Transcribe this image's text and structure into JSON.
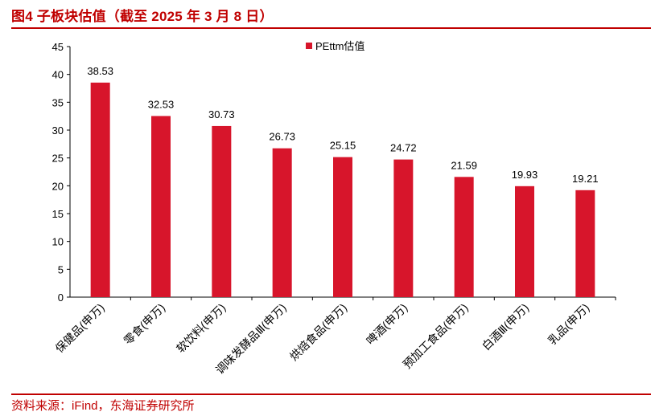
{
  "figure": {
    "title": "图4  子板块估值（截至 2025 年 3 月 8 日）",
    "source": "资料来源：iFind，东海证券研究所"
  },
  "colors": {
    "accent": "#c00000",
    "bar": "#d7152b"
  },
  "chart_data": {
    "type": "bar",
    "title": "",
    "categories": [
      "保健品(申万)",
      "零食(申万)",
      "软饮料(申万)",
      "调味发酵品Ⅲ(申万)",
      "烘焙食品(申万)",
      "啤酒(申万)",
      "预加工食品(申万)",
      "白酒Ⅲ(申万)",
      "乳品(申万)"
    ],
    "series": [
      {
        "name": "PEttm估值",
        "values": [
          38.53,
          32.53,
          30.73,
          26.73,
          25.15,
          24.72,
          21.59,
          19.93,
          19.21
        ]
      }
    ],
    "xlabel": "",
    "ylabel": "",
    "ylim": [
      0,
      45
    ],
    "yticks": [
      0,
      5,
      10,
      15,
      20,
      25,
      30,
      35,
      40,
      45
    ],
    "grid": false,
    "legend_position": "top-center",
    "data_labels": [
      "38.53",
      "32.53",
      "30.73",
      "26.73",
      "25.15",
      "24.72",
      "21.59",
      "19.93",
      "19.21"
    ]
  }
}
